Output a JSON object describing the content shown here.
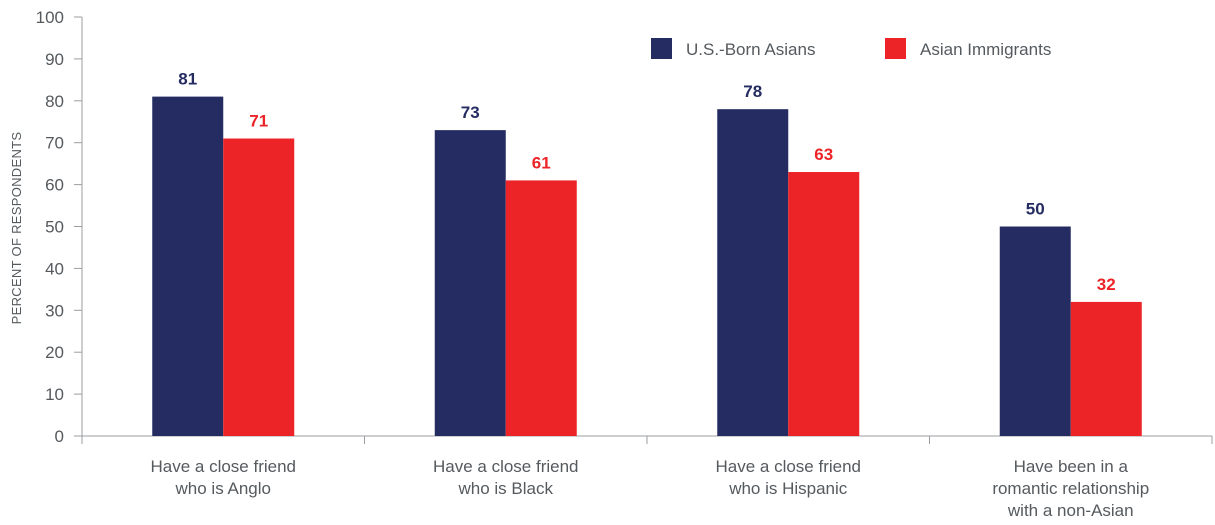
{
  "chart_data": {
    "type": "bar",
    "ylabel": "PERCENT OF RESPONDENTS",
    "ylim": [
      0,
      100
    ],
    "yticks": [
      "0",
      "10",
      "20",
      "30",
      "40",
      "50",
      "60",
      "70",
      "80",
      "90",
      "100"
    ],
    "grid": false,
    "legend_position": "top-right",
    "categories": [
      [
        "Have a close friend",
        "who is Anglo"
      ],
      [
        "Have a close friend",
        "who is Black"
      ],
      [
        "Have a close friend",
        "who is Hispanic"
      ],
      [
        "Have been in a",
        "romantic relationship",
        "with a non-Asian"
      ]
    ],
    "series": [
      {
        "name": "U.S.-Born Asians",
        "color": "#252c62",
        "values": [
          81,
          73,
          78,
          50
        ]
      },
      {
        "name": "Asian Immigrants",
        "color": "#ec2427",
        "values": [
          71,
          61,
          63,
          32
        ]
      }
    ]
  }
}
